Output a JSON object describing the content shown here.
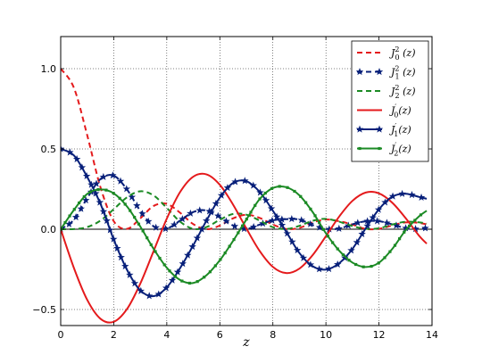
{
  "chart_data": {
    "type": "line",
    "xlabel": "z",
    "ylabel": "",
    "xlim": [
      0,
      14
    ],
    "ylim": [
      -0.6,
      1.2
    ],
    "xticks": [
      0,
      2,
      4,
      6,
      8,
      10,
      12,
      14
    ],
    "yticks": [
      -0.5,
      0.0,
      0.5,
      1.0
    ],
    "ytick_labels": [
      "−0.5",
      "0.0",
      "0.5",
      "1.0"
    ],
    "grid": true,
    "legend_position": "upper right",
    "x": [
      0,
      0.5,
      1,
      1.5,
      2,
      2.5,
      3,
      3.5,
      4,
      4.5,
      5,
      5.5,
      6,
      6.5,
      7,
      7.5,
      8,
      8.5,
      9,
      9.5,
      10,
      10.5,
      11,
      11.5,
      12,
      12.5,
      13,
      13.5,
      13.8
    ],
    "series": [
      {
        "name": "J_0^2(z)",
        "legend_main": "J",
        "legend_sub": "0",
        "legend_sup": "2",
        "legend_tail": " (z)",
        "color": "#e41a1c",
        "style": "dashed",
        "marker": "none",
        "values": [
          1.0,
          0.8802,
          0.5855,
          0.261,
          0.0499,
          0.0023,
          0.0676,
          0.1448,
          0.1577,
          0.1027,
          0.0316,
          0.0001,
          0.0226,
          0.0677,
          0.09,
          0.0707,
          0.0292,
          0.0016,
          0.0081,
          0.0423,
          0.0603,
          0.0498,
          0.0293,
          0.0019,
          0.0024,
          0.0233,
          0.0424,
          0.0393,
          0.03
        ]
      },
      {
        "name": "J_1^2(z)",
        "legend_main": "J",
        "legend_sub": "1",
        "legend_sup": "2",
        "legend_tail": " (z)",
        "color": "#08207a",
        "style": "dashed",
        "marker": "star",
        "values": [
          0.0,
          0.0587,
          0.1936,
          0.3124,
          0.3336,
          0.2474,
          0.1148,
          0.0186,
          0.0043,
          0.0534,
          0.1071,
          0.1167,
          0.0766,
          0.0233,
          0.0021,
          0.0286,
          0.0549,
          0.0623,
          0.0603,
          0.0261,
          0.0018,
          0.0038,
          0.0311,
          0.0494,
          0.0498,
          0.0306,
          0.0071,
          0.002,
          0.008
        ]
      },
      {
        "name": "J_2^2(z)",
        "legend_main": "J",
        "legend_sub": "2",
        "legend_sup": "2",
        "legend_tail": " (z)",
        "color": "#1b8a24",
        "style": "dashed",
        "marker": "none",
        "values": [
          0.0,
          0.0009,
          0.0132,
          0.0538,
          0.1245,
          0.1988,
          0.2362,
          0.2109,
          0.1326,
          0.0474,
          0.0022,
          0.0136,
          0.0588,
          0.095,
          0.0907,
          0.054,
          0.0128,
          0.0013,
          0.021,
          0.0525,
          0.0647,
          0.0467,
          0.0193,
          0.0028,
          0.0057,
          0.029,
          0.0465,
          0.043,
          0.035
        ]
      },
      {
        "name": "J_0'(z)",
        "legend_main": "J",
        "legend_sub": "0",
        "legend_sup": "′",
        "legend_tail": "(z)",
        "color": "#e41a1c",
        "style": "solid",
        "marker": "none",
        "values": [
          0.0,
          -0.2423,
          -0.4401,
          -0.5579,
          -0.5767,
          -0.4971,
          -0.3391,
          -0.1374,
          0.066,
          0.2311,
          0.3276,
          0.3414,
          0.2767,
          0.1529,
          0.0047,
          -0.1352,
          -0.2346,
          -0.2731,
          -0.2453,
          -0.1613,
          -0.0435,
          0.0789,
          0.1768,
          0.2284,
          0.2234,
          0.1655,
          0.0703,
          -0.038,
          -0.09
        ]
      },
      {
        "name": "J_1'(z)",
        "legend_main": "J",
        "legend_sub": "1",
        "legend_sup": "′",
        "legend_tail": "(z)",
        "color": "#08207a",
        "style": "solid",
        "marker": "star",
        "values": [
          0.5,
          0.4595,
          0.3251,
          0.1577,
          -0.0645,
          -0.2528,
          -0.381,
          -0.4167,
          -0.362,
          -0.2428,
          -0.0995,
          0.055,
          0.197,
          0.288,
          0.299,
          0.2326,
          0.1147,
          -0.015,
          -0.1482,
          -0.2304,
          -0.2513,
          -0.2119,
          -0.1224,
          0.005,
          0.1247,
          0.203,
          0.221,
          0.2016,
          0.1898
        ]
      },
      {
        "name": "J_2'(z)",
        "legend_main": "J",
        "legend_sub": "2",
        "legend_sup": "′",
        "legend_tail": "(z)",
        "color": "#1b8a24",
        "style": "solid",
        "marker": "square",
        "values": [
          0.0,
          0.1203,
          0.22,
          0.2476,
          0.2231,
          0.1418,
          0.0169,
          -0.1213,
          -0.2399,
          -0.3163,
          -0.3345,
          -0.2861,
          -0.1932,
          -0.0725,
          0.0601,
          0.1875,
          0.2566,
          0.262,
          0.2113,
          0.107,
          -0.0253,
          -0.1336,
          -0.2079,
          -0.2355,
          -0.2088,
          -0.1231,
          -0.0076,
          0.0783,
          0.115
        ]
      }
    ]
  }
}
